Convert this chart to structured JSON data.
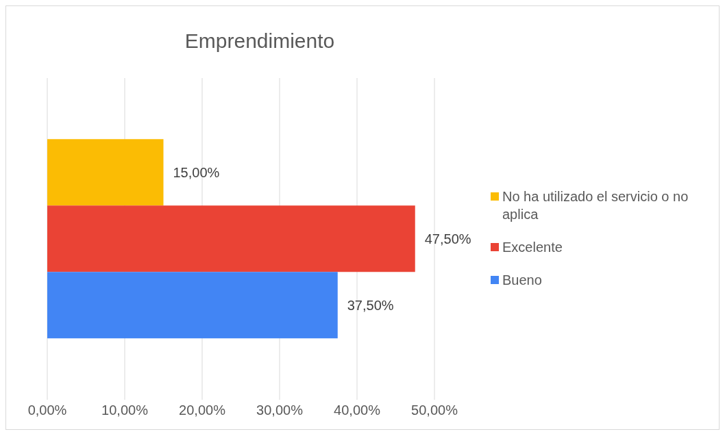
{
  "chart_data": {
    "type": "bar",
    "title": "Emprendimiento",
    "orientation": "horizontal",
    "categories": [
      null
    ],
    "series": [
      {
        "name": "No ha utilizado el servicio o no aplica",
        "color": "#fbbc04",
        "values": [
          15
        ],
        "value_labels": [
          "15,00%"
        ]
      },
      {
        "name": "Excelente",
        "color": "#ea4335",
        "values": [
          47.5
        ],
        "value_labels": [
          "47,50%"
        ]
      },
      {
        "name": "Bueno",
        "color": "#4285f4",
        "values": [
          37.5
        ],
        "value_labels": [
          "37,50%"
        ]
      }
    ],
    "xlim": [
      0,
      50
    ],
    "xticks": [
      {
        "value": 0,
        "label": "0,00%"
      },
      {
        "value": 10,
        "label": "10,00%"
      },
      {
        "value": 20,
        "label": "20,00%"
      },
      {
        "value": 30,
        "label": "30,00%"
      },
      {
        "value": 40,
        "label": "40,00%"
      },
      {
        "value": 50,
        "label": "50,00%"
      }
    ],
    "grid": "x",
    "legend": "right"
  }
}
